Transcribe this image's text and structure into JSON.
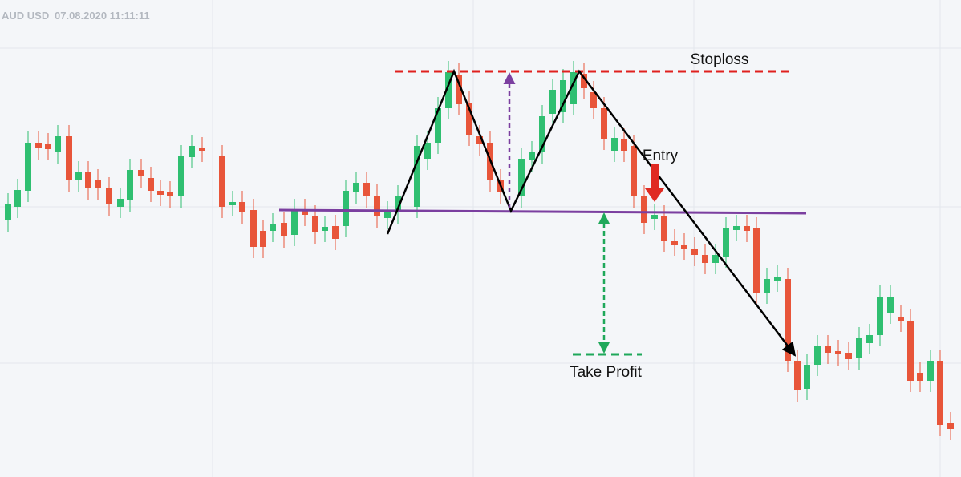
{
  "header": {
    "symbol": "AUD USD",
    "timestamp": "07.08.2020 11:11:11"
  },
  "annotations": {
    "stoploss": "Stoploss",
    "entry": "Entry",
    "take_profit": "Take Profit"
  }
}
